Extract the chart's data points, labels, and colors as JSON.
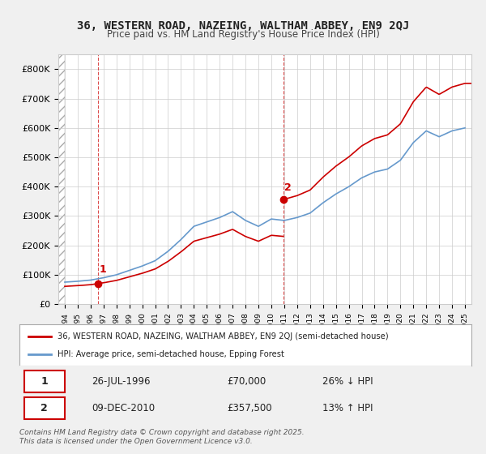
{
  "title1": "36, WESTERN ROAD, NAZEING, WALTHAM ABBEY, EN9 2QJ",
  "title2": "Price paid vs. HM Land Registry's House Price Index (HPI)",
  "legend_line1": "36, WESTERN ROAD, NAZEING, WALTHAM ABBEY, EN9 2QJ (semi-detached house)",
  "legend_line2": "HPI: Average price, semi-detached house, Epping Forest",
  "footer": "Contains HM Land Registry data © Crown copyright and database right 2025.\nThis data is licensed under the Open Government Licence v3.0.",
  "sale1_label": "1",
  "sale1_date": "26-JUL-1996",
  "sale1_price": "£70,000",
  "sale1_hpi": "26% ↓ HPI",
  "sale2_label": "2",
  "sale2_date": "09-DEC-2010",
  "sale2_price": "£357,500",
  "sale2_hpi": "13% ↑ HPI",
  "red_color": "#cc0000",
  "blue_color": "#6699cc",
  "bg_color": "#f0f0f0",
  "plot_bg": "#ffffff",
  "ylim": [
    0,
    850000
  ],
  "yticks": [
    0,
    100000,
    200000,
    300000,
    400000,
    500000,
    600000,
    700000,
    800000
  ],
  "ytick_labels": [
    "£0",
    "£100K",
    "£200K",
    "£300K",
    "£400K",
    "£500K",
    "£600K",
    "£700K",
    "£800K"
  ],
  "hpi_years": [
    1994,
    1995,
    1996,
    1997,
    1998,
    1999,
    2000,
    2001,
    2002,
    2003,
    2004,
    2005,
    2006,
    2007,
    2008,
    2009,
    2010,
    2011,
    2012,
    2013,
    2014,
    2015,
    2016,
    2017,
    2018,
    2019,
    2020,
    2021,
    2022,
    2023,
    2024,
    2025
  ],
  "hpi_values": [
    75000,
    78000,
    82000,
    90000,
    100000,
    115000,
    130000,
    148000,
    180000,
    220000,
    265000,
    280000,
    295000,
    315000,
    285000,
    265000,
    290000,
    285000,
    295000,
    310000,
    345000,
    375000,
    400000,
    430000,
    450000,
    460000,
    490000,
    550000,
    590000,
    570000,
    590000,
    600000
  ],
  "price_paid_years": [
    1996.57,
    2010.93
  ],
  "price_paid_values": [
    70000,
    357500
  ],
  "sale1_x": 1996.57,
  "sale1_y": 70000,
  "sale2_x": 2010.93,
  "sale2_y": 357500,
  "xlim_left": 1993.5,
  "xlim_right": 2025.5
}
